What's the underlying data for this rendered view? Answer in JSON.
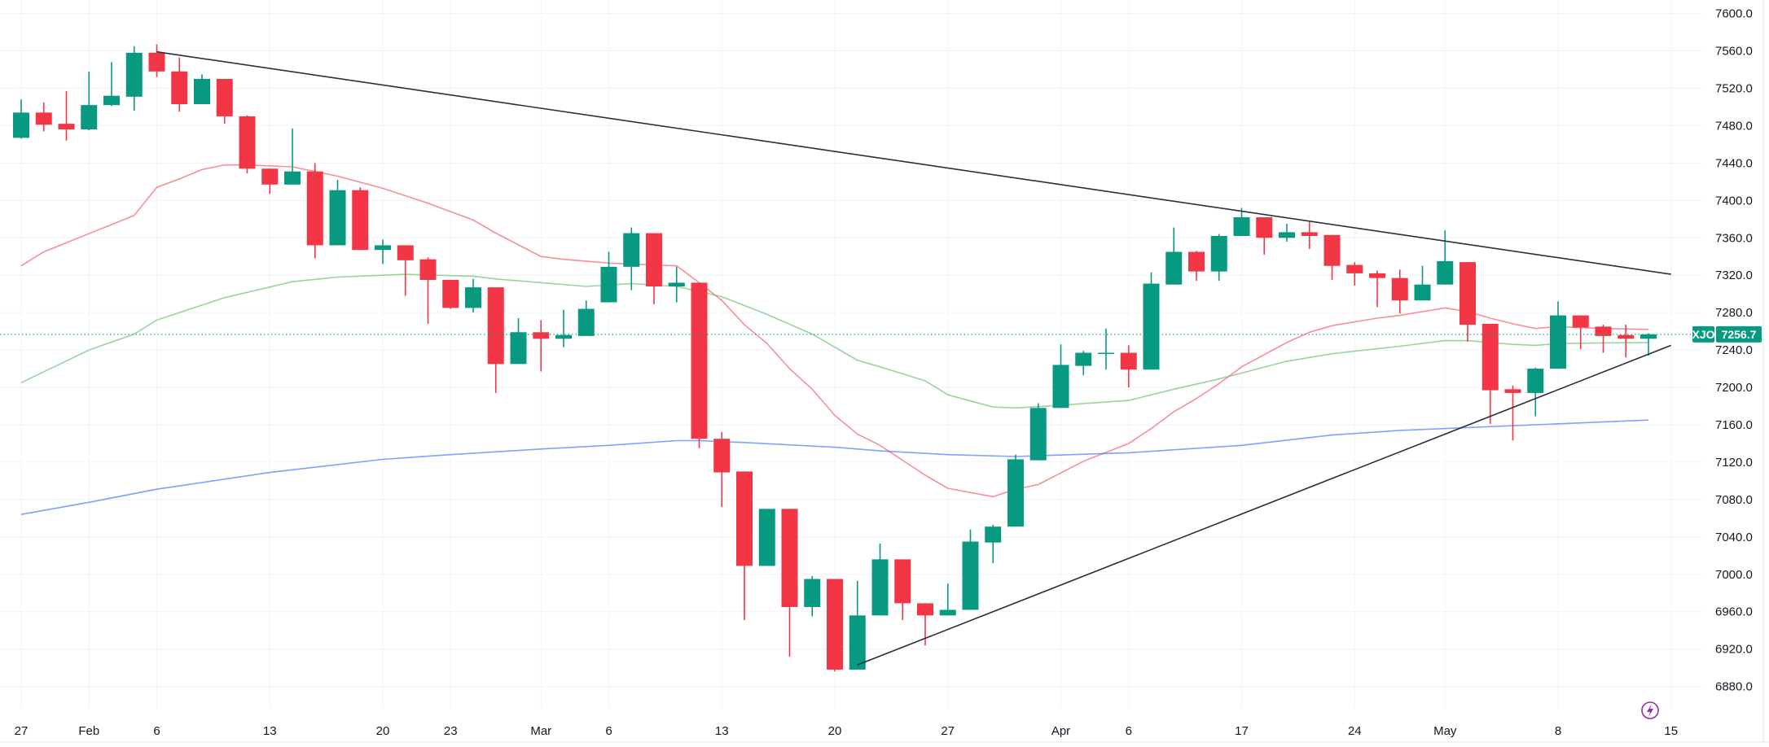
{
  "chart_data": {
    "type": "candlestick",
    "symbol": "XJO",
    "last_price_label": "7256.7",
    "last_price": 7256.7,
    "ylim": [
      6860,
      7615
    ],
    "y_ticks": [
      "7600.0",
      "7560.0",
      "7520.0",
      "7480.0",
      "7440.0",
      "7400.0",
      "7360.0",
      "7320.0",
      "7280.0",
      "7240.0",
      "7200.0",
      "7160.0",
      "7120.0",
      "7080.0",
      "7040.0",
      "7000.0",
      "6960.0",
      "6920.0",
      "6880.0"
    ],
    "x_ticks": [
      {
        "label": "27",
        "date": "Jan 27"
      },
      {
        "label": "Feb",
        "date": "Feb 1"
      },
      {
        "label": "6",
        "date": "Feb 6"
      },
      {
        "label": "13",
        "date": "Feb 13"
      },
      {
        "label": "20",
        "date": "Feb 20"
      },
      {
        "label": "23",
        "date": "Feb 23"
      },
      {
        "label": "Mar",
        "date": "Mar 1"
      },
      {
        "label": "6",
        "date": "Mar 6"
      },
      {
        "label": "13",
        "date": "Mar 13"
      },
      {
        "label": "20",
        "date": "Mar 20"
      },
      {
        "label": "27",
        "date": "Mar 27"
      },
      {
        "label": "Apr",
        "date": "Apr 3"
      },
      {
        "label": "6",
        "date": "Apr 6"
      },
      {
        "label": "17",
        "date": "Apr 17"
      },
      {
        "label": "24",
        "date": "Apr 24"
      },
      {
        "label": "May",
        "date": "May 1"
      },
      {
        "label": "8",
        "date": "May 8"
      },
      {
        "label": "15",
        "date": "May 15"
      }
    ],
    "dates_after_last_bar": [
      "May 15"
    ],
    "grid": true,
    "colors": {
      "up": "#089981",
      "down": "#F23645",
      "ma_fast": "#F7525F",
      "ma_mid": "#66BB6A",
      "ma_slow": "#2962FF",
      "trendline": "#2A2E39",
      "grid": "#F0F3FA",
      "alert_icon": "#9C27B0"
    },
    "candles_ohlc": [
      [
        "Jan 27",
        7467,
        7508,
        7466,
        7494
      ],
      [
        "Jan 30",
        7494,
        7505,
        7474,
        7481
      ],
      [
        "Jan 31",
        7482,
        7517,
        7464,
        7476
      ],
      [
        "Feb 1",
        7476,
        7538,
        7475,
        7502
      ],
      [
        "Feb 2",
        7502,
        7548,
        7501,
        7512
      ],
      [
        "Feb 3",
        7511,
        7565,
        7496,
        7558
      ],
      [
        "Feb 6",
        7558,
        7567,
        7532,
        7538
      ],
      [
        "Feb 7",
        7538,
        7553,
        7495,
        7503
      ],
      [
        "Feb 8",
        7503,
        7535,
        7503,
        7530
      ],
      [
        "Feb 9",
        7530,
        7530,
        7482,
        7490
      ],
      [
        "Feb 10",
        7490,
        7491,
        7429,
        7434
      ],
      [
        "Feb 13",
        7434,
        7434,
        7407,
        7417
      ],
      [
        "Feb 14",
        7417,
        7477,
        7417,
        7431
      ],
      [
        "Feb 15",
        7431,
        7440,
        7338,
        7352
      ],
      [
        "Feb 16",
        7352,
        7422,
        7352,
        7411
      ],
      [
        "Feb 17",
        7411,
        7414,
        7347,
        7347
      ],
      [
        "Feb 20",
        7347,
        7358,
        7332,
        7352
      ],
      [
        "Feb 21",
        7352,
        7352,
        7298,
        7336
      ],
      [
        "Feb 22",
        7337,
        7339,
        7268,
        7315
      ],
      [
        "Feb 23",
        7315,
        7315,
        7284,
        7285
      ],
      [
        "Feb 24",
        7285,
        7316,
        7280,
        7307
      ],
      [
        "Feb 27",
        7307,
        7307,
        7194,
        7225
      ],
      [
        "Feb 28",
        7225,
        7274,
        7225,
        7259
      ],
      [
        "Mar 1",
        7259,
        7272,
        7217,
        7252
      ],
      [
        "Mar 2",
        7252,
        7283,
        7243,
        7256
      ],
      [
        "Mar 3",
        7255,
        7293,
        7255,
        7284
      ],
      [
        "Mar 6",
        7291,
        7345,
        7291,
        7329
      ],
      [
        "Mar 7",
        7329,
        7371,
        7304,
        7365
      ],
      [
        "Mar 8",
        7365,
        7365,
        7289,
        7308
      ],
      [
        "Mar 9",
        7308,
        7329,
        7291,
        7312
      ],
      [
        "Mar 10",
        7312,
        7312,
        7135,
        7145
      ],
      [
        "Mar 13",
        7145,
        7152,
        7072,
        7109
      ],
      [
        "Mar 14",
        7110,
        7110,
        6951,
        7009
      ],
      [
        "Mar 15",
        7009,
        7070,
        7009,
        7070
      ],
      [
        "Mar 16",
        7070,
        7070,
        6912,
        6965
      ],
      [
        "Mar 17",
        6965,
        6998,
        6955,
        6995
      ],
      [
        "Mar 20",
        6995,
        6995,
        6896,
        6898
      ],
      [
        "Mar 21",
        6898,
        6993,
        6898,
        6956
      ],
      [
        "Mar 22",
        6956,
        7033,
        6956,
        7016
      ],
      [
        "Mar 23",
        7016,
        7016,
        6951,
        6969
      ],
      [
        "Mar 24",
        6969,
        6969,
        6924,
        6956
      ],
      [
        "Mar 27",
        6956,
        6990,
        6956,
        6962
      ],
      [
        "Mar 28",
        6962,
        7048,
        6962,
        7035
      ],
      [
        "Mar 29",
        7034,
        7053,
        7012,
        7051
      ],
      [
        "Mar 30",
        7051,
        7128,
        7051,
        7123
      ],
      [
        "Mar 31",
        7122,
        7183,
        7122,
        7178
      ],
      [
        "Apr 3",
        7178,
        7246,
        7178,
        7224
      ],
      [
        "Apr 4",
        7223,
        7239,
        7213,
        7237
      ],
      [
        "Apr 5",
        7236,
        7263,
        7219,
        7237
      ],
      [
        "Apr 6",
        7237,
        7245,
        7200,
        7219
      ],
      [
        "Apr 11",
        7219,
        7323,
        7219,
        7311
      ],
      [
        "Apr 12",
        7310,
        7371,
        7310,
        7345
      ],
      [
        "Apr 13",
        7345,
        7346,
        7314,
        7324
      ],
      [
        "Apr 14",
        7324,
        7364,
        7314,
        7362
      ],
      [
        "Apr 17",
        7362,
        7392,
        7362,
        7382
      ],
      [
        "Apr 18",
        7382,
        7382,
        7342,
        7360
      ],
      [
        "Apr 19",
        7360,
        7375,
        7356,
        7366
      ],
      [
        "Apr 20",
        7366,
        7377,
        7348,
        7362
      ],
      [
        "Apr 21",
        7363,
        7363,
        7315,
        7330
      ],
      [
        "Apr 24",
        7331,
        7334,
        7309,
        7322
      ],
      [
        "Apr 26",
        7322,
        7325,
        7286,
        7317
      ],
      [
        "Apr 27",
        7317,
        7326,
        7279,
        7293
      ],
      [
        "Apr 28",
        7293,
        7330,
        7293,
        7310
      ],
      [
        "May 1",
        7310,
        7368,
        7310,
        7335
      ],
      [
        "May 2",
        7334,
        7334,
        7249,
        7267
      ],
      [
        "May 3",
        7268,
        7268,
        7161,
        7197
      ],
      [
        "May 4",
        7198,
        7202,
        7143,
        7194
      ],
      [
        "May 5",
        7194,
        7221,
        7169,
        7220
      ],
      [
        "May 8",
        7220,
        7292,
        7220,
        7277
      ],
      [
        "May 9",
        7277,
        7277,
        7241,
        7264
      ],
      [
        "May 10",
        7265,
        7267,
        7237,
        7255
      ],
      [
        "May 11",
        7256,
        7267,
        7232,
        7252
      ],
      [
        "May 12",
        7252,
        7258,
        7234,
        7256.7
      ]
    ],
    "moving_averages": [
      {
        "color_key": "ma_fast",
        "points": [
          [
            "Jan 27",
            7330
          ],
          [
            "Jan 30",
            7345
          ],
          [
            "Feb 3",
            7384
          ],
          [
            "Feb 6",
            7414
          ],
          [
            "Feb 7",
            7423
          ],
          [
            "Feb 8",
            7433
          ],
          [
            "Feb 9",
            7438
          ],
          [
            "Feb 10",
            7438
          ],
          [
            "Feb 14",
            7436
          ],
          [
            "Feb 16",
            7426
          ],
          [
            "Feb 20",
            7413
          ],
          [
            "Feb 22",
            7397
          ],
          [
            "Feb 24",
            7379
          ],
          [
            "Feb 27",
            7365
          ],
          [
            "Mar 1",
            7340
          ],
          [
            "Mar 2",
            7337
          ],
          [
            "Mar 6",
            7333
          ],
          [
            "Mar 9",
            7330
          ],
          [
            "Mar 10",
            7312
          ],
          [
            "Mar 13",
            7293
          ],
          [
            "Mar 14",
            7267
          ],
          [
            "Mar 15",
            7247
          ],
          [
            "Mar 16",
            7220
          ],
          [
            "Mar 17",
            7198
          ],
          [
            "Mar 20",
            7170
          ],
          [
            "Mar 21",
            7150
          ],
          [
            "Mar 22",
            7138
          ],
          [
            "Mar 24",
            7106
          ],
          [
            "Mar 27",
            7092
          ],
          [
            "Mar 29",
            7083
          ],
          [
            "Mar 30",
            7091
          ],
          [
            "Mar 31",
            7096
          ],
          [
            "Apr 4",
            7121
          ],
          [
            "Apr 6",
            7140
          ],
          [
            "Apr 11",
            7156
          ],
          [
            "Apr 12",
            7174
          ],
          [
            "Apr 13",
            7188
          ],
          [
            "Apr 14",
            7204
          ],
          [
            "Apr 17",
            7222
          ],
          [
            "Apr 19",
            7248
          ],
          [
            "Apr 20",
            7259
          ],
          [
            "Apr 21",
            7266
          ],
          [
            "Apr 24",
            7270
          ],
          [
            "Apr 26",
            7274
          ],
          [
            "Apr 27",
            7277
          ],
          [
            "Apr 28",
            7281
          ],
          [
            "May 1",
            7285
          ],
          [
            "May 2",
            7281
          ],
          [
            "May 3",
            7274
          ],
          [
            "May 4",
            7268
          ],
          [
            "May 5",
            7263
          ],
          [
            "May 8",
            7265
          ],
          [
            "May 10",
            7263
          ],
          [
            "May 12",
            7262
          ]
        ]
      },
      {
        "color_key": "ma_mid",
        "points": [
          [
            "Jan 27",
            7205
          ],
          [
            "Feb 1",
            7240
          ],
          [
            "Feb 3",
            7257
          ],
          [
            "Feb 6",
            7272
          ],
          [
            "Feb 9",
            7296
          ],
          [
            "Feb 14",
            7313
          ],
          [
            "Feb 16",
            7318
          ],
          [
            "Feb 21",
            7321
          ],
          [
            "Feb 24",
            7319
          ],
          [
            "Feb 27",
            7316
          ],
          [
            "Mar 3",
            7308
          ],
          [
            "Mar 7",
            7311
          ],
          [
            "Mar 9",
            7308
          ],
          [
            "Mar 13",
            7297
          ],
          [
            "Mar 15",
            7278
          ],
          [
            "Mar 17",
            7257
          ],
          [
            "Mar 21",
            7229
          ],
          [
            "Mar 22",
            7222
          ],
          [
            "Mar 24",
            7207
          ],
          [
            "Mar 27",
            7192
          ],
          [
            "Mar 29",
            7179
          ],
          [
            "Mar 30",
            7178
          ],
          [
            "Apr 3",
            7181
          ],
          [
            "Apr 6",
            7186
          ],
          [
            "Apr 12",
            7198
          ],
          [
            "Apr 14",
            7209
          ],
          [
            "Apr 19",
            7228
          ],
          [
            "Apr 21",
            7236
          ],
          [
            "Apr 27",
            7244
          ],
          [
            "May 1",
            7250
          ],
          [
            "May 2",
            7250
          ],
          [
            "May 4",
            7246
          ],
          [
            "May 5",
            7245
          ],
          [
            "May 8",
            7247
          ],
          [
            "May 12",
            7248
          ]
        ]
      },
      {
        "color_key": "ma_slow",
        "points": [
          [
            "Jan 27",
            7064
          ],
          [
            "Feb 1",
            7077
          ],
          [
            "Feb 6",
            7091
          ],
          [
            "Feb 13",
            7109
          ],
          [
            "Feb 20",
            7123
          ],
          [
            "Feb 23",
            7128
          ],
          [
            "Mar 1",
            7134
          ],
          [
            "Mar 6",
            7138
          ],
          [
            "Mar 9",
            7143
          ],
          [
            "Mar 10",
            7143
          ],
          [
            "Mar 14",
            7141
          ],
          [
            "Mar 20",
            7136
          ],
          [
            "Mar 22",
            7132
          ],
          [
            "Mar 27",
            7128
          ],
          [
            "Mar 30",
            7126
          ],
          [
            "Apr 6",
            7130
          ],
          [
            "Apr 17",
            7138
          ],
          [
            "Apr 21",
            7149
          ],
          [
            "Apr 27",
            7154
          ],
          [
            "May 5",
            7160
          ],
          [
            "May 12",
            7165
          ]
        ]
      }
    ],
    "trendlines": [
      {
        "from": [
          "Feb 6",
          7559
        ],
        "to": [
          "May 15",
          7321
        ]
      },
      {
        "from": [
          "Mar 21",
          6903
        ],
        "to": [
          "May 15",
          7245
        ]
      }
    ]
  },
  "icons": {
    "alert": "lightning-bolt-icon"
  }
}
